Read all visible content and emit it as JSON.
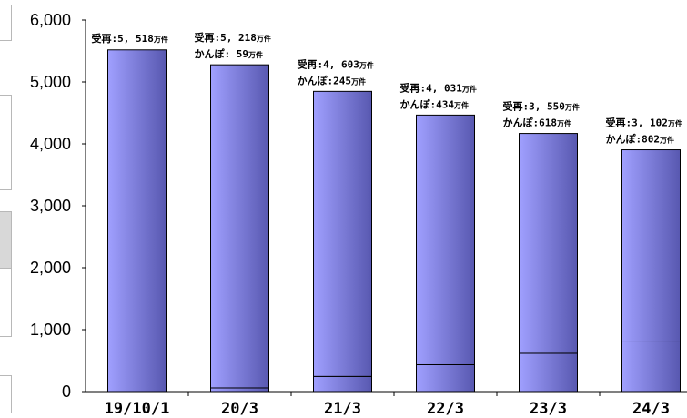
{
  "chart_data": {
    "type": "bar",
    "stacked": true,
    "categories": [
      "19/10/1",
      "20/3",
      "21/3",
      "22/3",
      "23/3",
      "24/3"
    ],
    "series": [
      {
        "values": [
          0,
          59,
          245,
          434,
          618,
          802
        ]
      },
      {
        "values": [
          5518,
          5218,
          4603,
          4031,
          3550,
          3102
        ]
      }
    ],
    "yticks": [
      "0",
      "1,000",
      "2,000",
      "3,000",
      "4,000",
      "5,000",
      "6,000"
    ],
    "ylim": [
      0,
      6000
    ],
    "grid": false,
    "legend": "none",
    "annotations": [
      {
        "line1": "受再:5, 518",
        "unit1": "万件",
        "line2": "",
        "unit2": ""
      },
      {
        "line1": "受再:5, 218",
        "unit1": "万件",
        "line2": "かんぽ: 59",
        "unit2": "万件"
      },
      {
        "line1": "受再:4, 603",
        "unit1": "万件",
        "line2": "かんぽ:245",
        "unit2": "万件"
      },
      {
        "line1": "受再:4, 031",
        "unit1": "万件",
        "line2": "かんぽ:434",
        "unit2": "万件"
      },
      {
        "line1": "受再:3, 550",
        "unit1": "万件",
        "line2": "かんぽ:618",
        "unit2": "万件"
      },
      {
        "line1": "受再:3, 102",
        "unit1": "万件",
        "line2": "かんぽ:802",
        "unit2": "万件"
      }
    ],
    "colors": {
      "bar_light": "#a0a0ff",
      "bar_dark": "#5858b0",
      "outline": "#000000",
      "axis": "#000000"
    }
  }
}
